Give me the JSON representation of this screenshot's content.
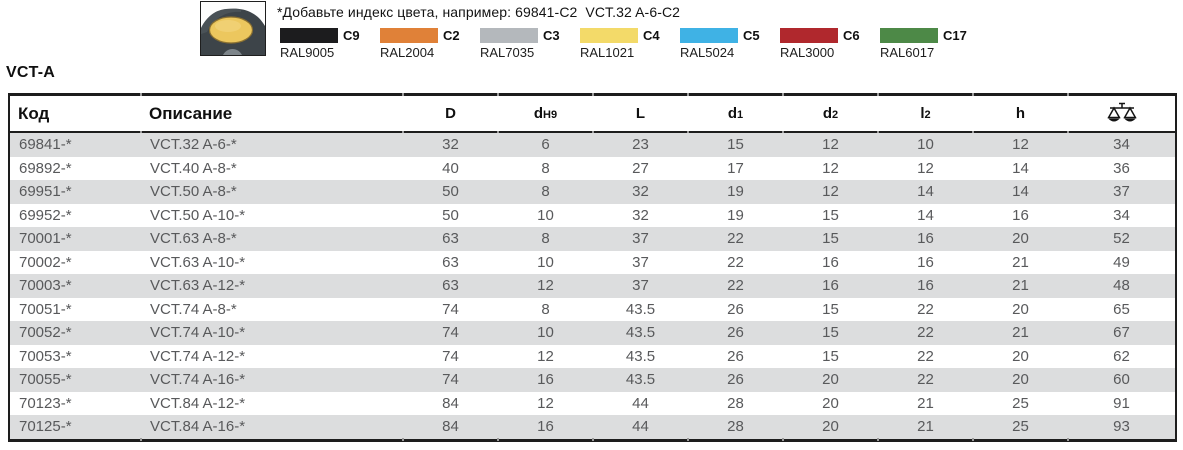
{
  "note": "*Добавьте индекс цвета, например: 69841-C2  VCT.32 A-6-C2",
  "colors": [
    {
      "code": "C9",
      "ral": "RAL9005",
      "hex": "#1c1c1e"
    },
    {
      "code": "C2",
      "ral": "RAL2004",
      "hex": "#e08138"
    },
    {
      "code": "C3",
      "ral": "RAL7035",
      "hex": "#b4b8bc"
    },
    {
      "code": "C4",
      "ral": "RAL1021",
      "hex": "#f3da69"
    },
    {
      "code": "C5",
      "ral": "RAL5024",
      "hex": "#3fb2e5"
    },
    {
      "code": "C6",
      "ral": "RAL3000",
      "hex": "#b0282d"
    },
    {
      "code": "C17",
      "ral": "RAL6017",
      "hex": "#4d8947"
    }
  ],
  "series_label": "VCT-A",
  "table": {
    "columns": [
      {
        "label": "Код"
      },
      {
        "label": "Описание"
      },
      {
        "main": "D",
        "sub": ""
      },
      {
        "main": "d",
        "sub": "H9"
      },
      {
        "main": "L",
        "sub": ""
      },
      {
        "main": "d",
        "sub": "1"
      },
      {
        "main": "d",
        "sub": "2"
      },
      {
        "main": "l",
        "sub": "2"
      },
      {
        "main": "h",
        "sub": ""
      },
      {
        "icon": "weight-scale"
      }
    ],
    "rows": [
      [
        "69841-*",
        "VCT.32 A-6-*",
        "32",
        "6",
        "23",
        "15",
        "12",
        "10",
        "12",
        "34"
      ],
      [
        "69892-*",
        "VCT.40 A-8-*",
        "40",
        "8",
        "27",
        "17",
        "12",
        "12",
        "14",
        "36"
      ],
      [
        "69951-*",
        "VCT.50 A-8-*",
        "50",
        "8",
        "32",
        "19",
        "12",
        "14",
        "14",
        "37"
      ],
      [
        "69952-*",
        "VCT.50 A-10-*",
        "50",
        "10",
        "32",
        "19",
        "15",
        "14",
        "16",
        "34"
      ],
      [
        "70001-*",
        "VCT.63 A-8-*",
        "63",
        "8",
        "37",
        "22",
        "15",
        "16",
        "20",
        "52"
      ],
      [
        "70002-*",
        "VCT.63 A-10-*",
        "63",
        "10",
        "37",
        "22",
        "16",
        "16",
        "21",
        "49"
      ],
      [
        "70003-*",
        "VCT.63 A-12-*",
        "63",
        "12",
        "37",
        "22",
        "16",
        "16",
        "21",
        "48"
      ],
      [
        "70051-*",
        "VCT.74 A-8-*",
        "74",
        "8",
        "43.5",
        "26",
        "15",
        "22",
        "20",
        "65"
      ],
      [
        "70052-*",
        "VCT.74 A-10-*",
        "74",
        "10",
        "43.5",
        "26",
        "15",
        "22",
        "21",
        "67"
      ],
      [
        "70053-*",
        "VCT.74 A-12-*",
        "74",
        "12",
        "43.5",
        "26",
        "15",
        "22",
        "20",
        "62"
      ],
      [
        "70055-*",
        "VCT.74 A-16-*",
        "74",
        "16",
        "43.5",
        "26",
        "20",
        "22",
        "20",
        "60"
      ],
      [
        "70123-*",
        "VCT.84 A-12-*",
        "84",
        "12",
        "44",
        "28",
        "20",
        "21",
        "25",
        "91"
      ],
      [
        "70125-*",
        "VCT.84 A-16-*",
        "84",
        "16",
        "44",
        "28",
        "20",
        "21",
        "25",
        "93"
      ]
    ]
  }
}
